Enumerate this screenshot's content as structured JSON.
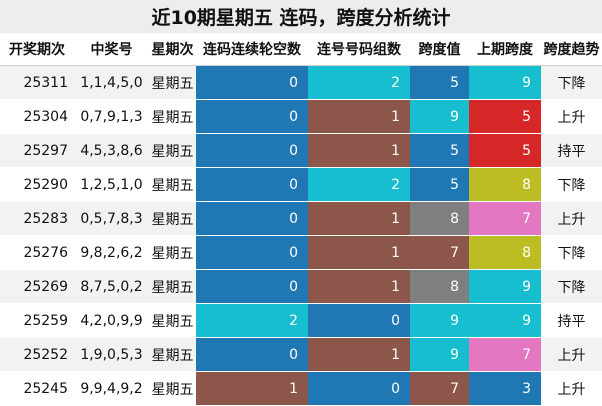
{
  "title": "近10期星期五 连码，跨度分析统计",
  "headers": [
    "开奖期次",
    "中奖号",
    "星期次",
    "连码连续轮空数",
    "连号号码组数",
    "跨度值",
    "上期跨度",
    "跨度趋势"
  ],
  "colors": {
    "blue": "#1f77b4",
    "cyan": "#17becf",
    "brown": "#8c564b",
    "red": "#d62728",
    "olive": "#bcbd22",
    "pink": "#e377c2",
    "gray": "#7f7f7f"
  },
  "rows": [
    {
      "period": "25311",
      "numbers": "1,1,4,5,0",
      "weekday": "星期五",
      "skip": "0",
      "groups": "2",
      "span": "5",
      "prev_span": "9",
      "trend": "下降"
    },
    {
      "period": "25304",
      "numbers": "0,7,9,1,3",
      "weekday": "星期五",
      "skip": "0",
      "groups": "1",
      "span": "9",
      "prev_span": "5",
      "trend": "上升"
    },
    {
      "period": "25297",
      "numbers": "4,5,3,8,6",
      "weekday": "星期五",
      "skip": "0",
      "groups": "1",
      "span": "5",
      "prev_span": "5",
      "trend": "持平"
    },
    {
      "period": "25290",
      "numbers": "1,2,5,1,0",
      "weekday": "星期五",
      "skip": "0",
      "groups": "2",
      "span": "5",
      "prev_span": "8",
      "trend": "下降"
    },
    {
      "period": "25283",
      "numbers": "0,5,7,8,3",
      "weekday": "星期五",
      "skip": "0",
      "groups": "1",
      "span": "8",
      "prev_span": "7",
      "trend": "上升"
    },
    {
      "period": "25276",
      "numbers": "9,8,2,6,2",
      "weekday": "星期五",
      "skip": "0",
      "groups": "1",
      "span": "7",
      "prev_span": "8",
      "trend": "下降"
    },
    {
      "period": "25269",
      "numbers": "8,7,5,0,2",
      "weekday": "星期五",
      "skip": "0",
      "groups": "1",
      "span": "8",
      "prev_span": "9",
      "trend": "下降"
    },
    {
      "period": "25259",
      "numbers": "4,2,0,9,9",
      "weekday": "星期五",
      "skip": "2",
      "groups": "0",
      "span": "9",
      "prev_span": "9",
      "trend": "持平"
    },
    {
      "period": "25252",
      "numbers": "1,9,0,5,3",
      "weekday": "星期五",
      "skip": "0",
      "groups": "1",
      "span": "9",
      "prev_span": "7",
      "trend": "上升"
    },
    {
      "period": "25245",
      "numbers": "9,9,4,9,2",
      "weekday": "星期五",
      "skip": "1",
      "groups": "0",
      "span": "7",
      "prev_span": "3",
      "trend": "上升"
    }
  ]
}
